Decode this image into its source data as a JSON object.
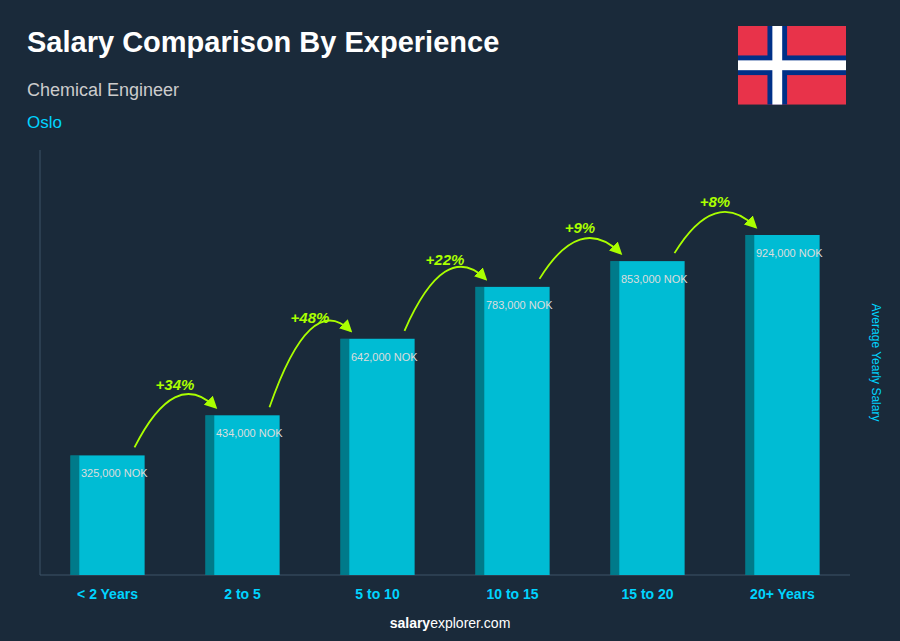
{
  "chart_data": {
    "type": "bar",
    "title": "Salary Comparison By Experience",
    "subtitle": "Chemical Engineer",
    "ylabel": "Average Yearly Salary",
    "annotations": [
      "Oslo",
      "salary",
      "explorer.com"
    ],
    "change_labels": [
      "+34%",
      "+48%",
      "+22%",
      "+9%",
      "+8%"
    ],
    "categories": [
      "< 2 Years",
      "2 to 5",
      "5 to 10",
      "10 to 15",
      "15 to 20",
      "20+ Years"
    ],
    "values": [
      325000,
      434000,
      642000,
      783000,
      853000,
      924000
    ],
    "value_labels": [
      "325,000 NOK",
      "434,000 NOK",
      "642,000 NOK",
      "783,000 NOK",
      "853,000 NOK",
      "924,000 NOK"
    ],
    "data_labels": true,
    "color": "#00bcd4",
    "ylim": [
      0,
      1155000
    ],
    "grid": false,
    "tick_labels": "x"
  }
}
